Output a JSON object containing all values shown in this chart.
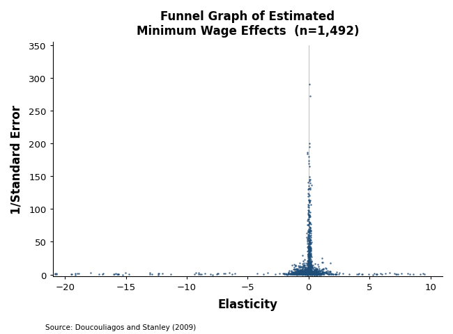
{
  "title_line1": "Funnel Graph of Estimated",
  "title_line2": "Minimum Wage Effects  (n=1,492)",
  "xlabel": "Elasticity",
  "ylabel": "1/Standard Error",
  "source": "Source: Doucouliagos and Stanley (2009)",
  "xlim": [
    -21,
    11
  ],
  "ylim": [
    -3,
    355
  ],
  "xticks": [
    -20,
    -15,
    -10,
    -5,
    0,
    5,
    10
  ],
  "yticks": [
    0,
    50,
    100,
    150,
    200,
    250,
    300,
    350
  ],
  "dot_color": "#1F4E79",
  "dot_size": 3,
  "n": 1492,
  "seed": 42,
  "background_color": "#ffffff"
}
